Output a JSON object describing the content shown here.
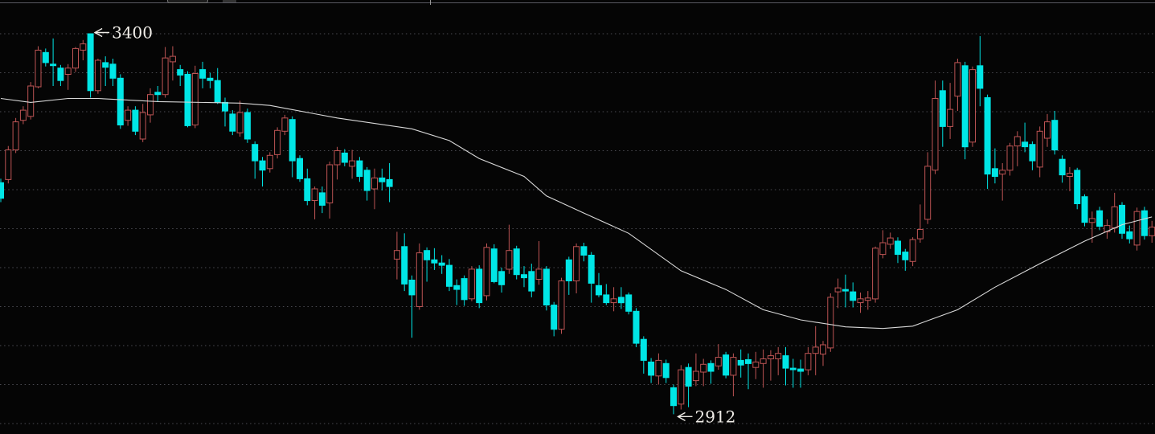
{
  "chart_data": {
    "type": "candlestick",
    "title": "",
    "x_axis": {
      "labels_visible": false
    },
    "y_axis": {
      "labels_visible": false,
      "min": 2880,
      "max": 3424,
      "gridline_prices": [
        3400,
        3350,
        3300,
        3250,
        3200,
        3150,
        3100,
        3050,
        3000,
        2950,
        2900
      ],
      "grid_style": "dotted"
    },
    "annotations": [
      {
        "text": "3400",
        "price": 3400,
        "candle_index": 12,
        "arrow": "left"
      },
      {
        "text": "2912",
        "price": 2912,
        "candle_index": 90,
        "arrow": "left"
      }
    ],
    "legend": {
      "visible": false
    },
    "colors": {
      "up_candle": "#bd5454",
      "down_candle": "#00e6e6",
      "ma_line": "#d8d8d8",
      "grid": "#4b4b52",
      "background": "#050505",
      "annotation_text": "#f0ede8"
    },
    "series": [
      {
        "name": "daily-candles",
        "type": "candlestick",
        "ohlc": [
          [
            3209,
            3214,
            3184,
            3189
          ],
          [
            3213,
            3256,
            3208,
            3251
          ],
          [
            3251,
            3292,
            3247,
            3287
          ],
          [
            3289,
            3307,
            3284,
            3302
          ],
          [
            3294,
            3338,
            3290,
            3333
          ],
          [
            3332,
            3384,
            3330,
            3379
          ],
          [
            3376,
            3381,
            3358,
            3363
          ],
          [
            3361,
            3394,
            3333,
            3359
          ],
          [
            3356,
            3360,
            3333,
            3340
          ],
          [
            3348,
            3361,
            3328,
            3356
          ],
          [
            3356,
            3383,
            3351,
            3381
          ],
          [
            3379,
            3392,
            3366,
            3387
          ],
          [
            3400,
            3400,
            3318,
            3327
          ],
          [
            3327,
            3368,
            3323,
            3366
          ],
          [
            3363,
            3371,
            3333,
            3357
          ],
          [
            3361,
            3368,
            3333,
            3343
          ],
          [
            3343,
            3348,
            3278,
            3283
          ],
          [
            3289,
            3307,
            3282,
            3302
          ],
          [
            3302,
            3307,
            3270,
            3275
          ],
          [
            3265,
            3310,
            3261,
            3299
          ],
          [
            3296,
            3330,
            3286,
            3322
          ],
          [
            3325,
            3333,
            3313,
            3322
          ],
          [
            3322,
            3383,
            3318,
            3369
          ],
          [
            3364,
            3384,
            3340,
            3371
          ],
          [
            3354,
            3360,
            3333,
            3347
          ],
          [
            3348,
            3352,
            3280,
            3282
          ],
          [
            3283,
            3359,
            3279,
            3349
          ],
          [
            3354,
            3364,
            3330,
            3343
          ],
          [
            3343,
            3350,
            3330,
            3340
          ],
          [
            3340,
            3356,
            3310,
            3312
          ],
          [
            3312,
            3318,
            3281,
            3301
          ],
          [
            3297,
            3302,
            3270,
            3275
          ],
          [
            3273,
            3314,
            3268,
            3299
          ],
          [
            3299,
            3304,
            3260,
            3265
          ],
          [
            3258,
            3262,
            3214,
            3237
          ],
          [
            3237,
            3242,
            3204,
            3225
          ],
          [
            3227,
            3248,
            3222,
            3244
          ],
          [
            3245,
            3280,
            3240,
            3276
          ],
          [
            3275,
            3296,
            3270,
            3292
          ],
          [
            3290,
            3294,
            3216,
            3237
          ],
          [
            3240,
            3244,
            3210,
            3214
          ],
          [
            3214,
            3227,
            3180,
            3186
          ],
          [
            3186,
            3204,
            3162,
            3201
          ],
          [
            3196,
            3204,
            3170,
            3180
          ],
          [
            3183,
            3236,
            3163,
            3232
          ],
          [
            3232,
            3255,
            3213,
            3250
          ],
          [
            3247,
            3252,
            3230,
            3235
          ],
          [
            3230,
            3251,
            3214,
            3237
          ],
          [
            3237,
            3242,
            3210,
            3217
          ],
          [
            3225,
            3229,
            3186,
            3199
          ],
          [
            3201,
            3227,
            3175,
            3215
          ],
          [
            3215,
            3227,
            3199,
            3210
          ],
          [
            3213,
            3234,
            3184,
            3204
          ],
          [
            3111,
            3146,
            3085,
            3122
          ],
          [
            3127,
            3144,
            3070,
            3079
          ],
          [
            3084,
            3090,
            3010,
            3065
          ],
          [
            3050,
            3131,
            3046,
            3119
          ],
          [
            3122,
            3126,
            3082,
            3110
          ],
          [
            3110,
            3125,
            3097,
            3106
          ],
          [
            3106,
            3116,
            3092,
            3103
          ],
          [
            3103,
            3111,
            3070,
            3076
          ],
          [
            3077,
            3085,
            3052,
            3072
          ],
          [
            3086,
            3090,
            3051,
            3059
          ],
          [
            3060,
            3102,
            3057,
            3098
          ],
          [
            3098,
            3103,
            3048,
            3055
          ],
          [
            3064,
            3131,
            3058,
            3126
          ],
          [
            3124,
            3130,
            3080,
            3082
          ],
          [
            3095,
            3100,
            3068,
            3078
          ],
          [
            3098,
            3155,
            3092,
            3122
          ],
          [
            3124,
            3128,
            3085,
            3091
          ],
          [
            3091,
            3102,
            3075,
            3087
          ],
          [
            3095,
            3105,
            3062,
            3070
          ],
          [
            3085,
            3134,
            3078,
            3098
          ],
          [
            3098,
            3102,
            3045,
            3052
          ],
          [
            3052,
            3056,
            3012,
            3021
          ],
          [
            3021,
            3087,
            3015,
            3083
          ],
          [
            3110,
            3114,
            3065,
            3083
          ],
          [
            3083,
            3131,
            3067,
            3127
          ],
          [
            3127,
            3132,
            3108,
            3116
          ],
          [
            3116,
            3120,
            3055,
            3080
          ],
          [
            3077,
            3093,
            3062,
            3065
          ],
          [
            3065,
            3079,
            3052,
            3055
          ],
          [
            3055,
            3075,
            3044,
            3060
          ],
          [
            3062,
            3075,
            3047,
            3055
          ],
          [
            3065,
            3068,
            3040,
            3044
          ],
          [
            3044,
            3048,
            2998,
            3003
          ],
          [
            3008,
            3012,
            2964,
            2981
          ],
          [
            2979,
            2984,
            2952,
            2962
          ],
          [
            2961,
            2990,
            2950,
            2981
          ],
          [
            2977,
            2982,
            2952,
            2959
          ],
          [
            2946,
            2950,
            2912,
            2923
          ],
          [
            2925,
            2975,
            2918,
            2969
          ],
          [
            2972,
            2977,
            2921,
            2948
          ],
          [
            2955,
            2990,
            2948,
            2967
          ],
          [
            2966,
            2983,
            2948,
            2976
          ],
          [
            2977,
            2981,
            2951,
            2967
          ],
          [
            2974,
            3002,
            2969,
            2985
          ],
          [
            2988,
            2992,
            2958,
            2962
          ],
          [
            2962,
            2990,
            2935,
            2985
          ],
          [
            2981,
            2995,
            2959,
            2975
          ],
          [
            2982,
            2990,
            2944,
            2977
          ],
          [
            2972,
            2992,
            2957,
            2979
          ],
          [
            2977,
            2995,
            2946,
            2983
          ],
          [
            2983,
            2994,
            2955,
            2987
          ],
          [
            2983,
            2998,
            2962,
            2990
          ],
          [
            2987,
            2998,
            2949,
            2971
          ],
          [
            2971,
            2983,
            2946,
            2969
          ],
          [
            2970,
            2982,
            2946,
            2967
          ],
          [
            2969,
            2998,
            2962,
            2990
          ],
          [
            2990,
            3025,
            2962,
            2998
          ],
          [
            2989,
            3006,
            2974,
            3001
          ],
          [
            2997,
            3067,
            2992,
            3062
          ],
          [
            3069,
            3086,
            3048,
            3074
          ],
          [
            3072,
            3091,
            3049,
            3070
          ],
          [
            3069,
            3081,
            3049,
            3058
          ],
          [
            3055,
            3068,
            3042,
            3060
          ],
          [
            3058,
            3070,
            3046,
            3061
          ],
          [
            3060,
            3127,
            3055,
            3125
          ],
          [
            3117,
            3148,
            3112,
            3132
          ],
          [
            3130,
            3145,
            3124,
            3138
          ],
          [
            3134,
            3139,
            3106,
            3117
          ],
          [
            3120,
            3124,
            3096,
            3110
          ],
          [
            3108,
            3139,
            3102,
            3136
          ],
          [
            3137,
            3181,
            3132,
            3149
          ],
          [
            3162,
            3248,
            3156,
            3230
          ],
          [
            3225,
            3340,
            3220,
            3317
          ],
          [
            3327,
            3340,
            3255,
            3281
          ],
          [
            3281,
            3337,
            3265,
            3303
          ],
          [
            3320,
            3368,
            3301,
            3363
          ],
          [
            3359,
            3364,
            3239,
            3255
          ],
          [
            3261,
            3358,
            3255,
            3354
          ],
          [
            3359,
            3397,
            3307,
            3330
          ],
          [
            3318,
            3322,
            3201,
            3220
          ],
          [
            3227,
            3253,
            3208,
            3217
          ],
          [
            3220,
            3234,
            3186,
            3225
          ],
          [
            3225,
            3260,
            3218,
            3256
          ],
          [
            3256,
            3275,
            3230,
            3268
          ],
          [
            3261,
            3286,
            3248,
            3255
          ],
          [
            3258,
            3262,
            3225,
            3237
          ],
          [
            3229,
            3281,
            3216,
            3275
          ],
          [
            3266,
            3297,
            3255,
            3287
          ],
          [
            3289,
            3301,
            3245,
            3251
          ],
          [
            3239,
            3244,
            3209,
            3219
          ],
          [
            3217,
            3229,
            3198,
            3221
          ],
          [
            3225,
            3228,
            3175,
            3182
          ],
          [
            3191,
            3194,
            3153,
            3158
          ],
          [
            3158,
            3172,
            3132,
            3163
          ],
          [
            3173,
            3178,
            3148,
            3153
          ],
          [
            3146,
            3162,
            3137,
            3154
          ],
          [
            3151,
            3196,
            3145,
            3178
          ],
          [
            3180,
            3184,
            3137,
            3144
          ],
          [
            3146,
            3154,
            3131,
            3137
          ],
          [
            3129,
            3177,
            3122,
            3172
          ],
          [
            3173,
            3178,
            3136,
            3141
          ],
          [
            3141,
            3160,
            3132,
            3152
          ]
        ]
      },
      {
        "name": "moving-average",
        "type": "line",
        "points": [
          [
            0,
            3317
          ],
          [
            4,
            3312
          ],
          [
            9,
            3317
          ],
          [
            13,
            3317
          ],
          [
            21,
            3313
          ],
          [
            32,
            3311
          ],
          [
            36,
            3308
          ],
          [
            45,
            3292
          ],
          [
            55,
            3278
          ],
          [
            60,
            3263
          ],
          [
            64,
            3240
          ],
          [
            70,
            3217
          ],
          [
            73,
            3192
          ],
          [
            78,
            3170
          ],
          [
            84,
            3144
          ],
          [
            91,
            3096
          ],
          [
            97,
            3072
          ],
          [
            102,
            3046
          ],
          [
            107,
            3033
          ],
          [
            113,
            3024
          ],
          [
            118,
            3022
          ],
          [
            122,
            3025
          ],
          [
            128,
            3046
          ],
          [
            133,
            3075
          ],
          [
            139,
            3105
          ],
          [
            145,
            3134
          ],
          [
            150,
            3155
          ],
          [
            154,
            3165
          ]
        ]
      }
    ]
  }
}
